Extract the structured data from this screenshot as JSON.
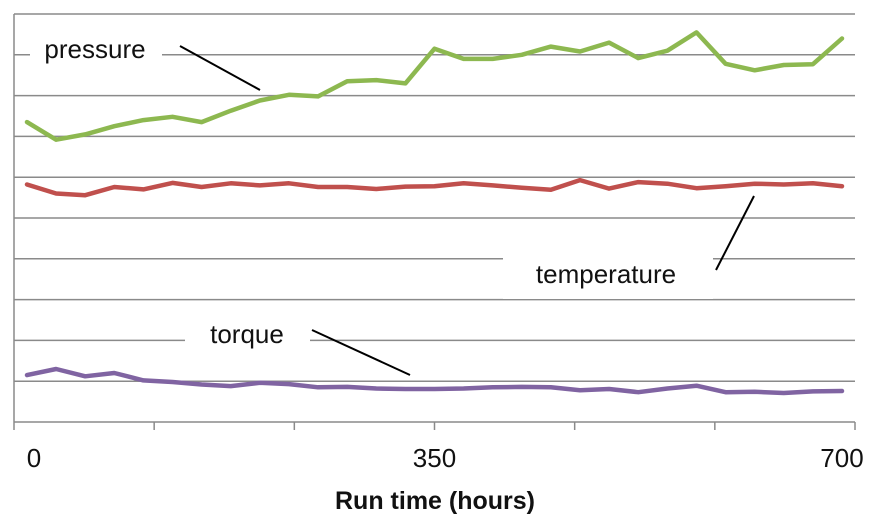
{
  "chart_data": {
    "type": "line",
    "title": "",
    "xlabel": "Run time (hours)",
    "ylabel": "",
    "x_ticks": [
      {
        "value": 0,
        "label": "0"
      },
      {
        "value": 350,
        "label": "350"
      },
      {
        "value": 700,
        "label": "700"
      }
    ],
    "xlim": [
      -10,
      710
    ],
    "ylim": [
      0,
      10
    ],
    "grid": true,
    "x": [
      0,
      25,
      50,
      75,
      100,
      125,
      150,
      175,
      200,
      225,
      250,
      275,
      300,
      325,
      350,
      375,
      400,
      425,
      450,
      475,
      500,
      525,
      550,
      575,
      600,
      625,
      650,
      675,
      700
    ],
    "series": [
      {
        "name": "pressure",
        "color": "#8DB850",
        "values": [
          7.35,
          6.92,
          7.05,
          7.25,
          7.4,
          7.48,
          7.35,
          7.63,
          7.88,
          8.02,
          7.98,
          8.35,
          8.38,
          8.3,
          9.15,
          8.9,
          8.9,
          9.0,
          9.2,
          9.08,
          9.3,
          8.92,
          9.1,
          9.55,
          8.78,
          8.62,
          8.75,
          8.77,
          9.4
        ]
      },
      {
        "name": "temperature",
        "color": "#C0504D",
        "values": [
          5.82,
          5.6,
          5.56,
          5.76,
          5.7,
          5.86,
          5.76,
          5.85,
          5.8,
          5.85,
          5.76,
          5.76,
          5.71,
          5.77,
          5.78,
          5.85,
          5.8,
          5.74,
          5.69,
          5.93,
          5.72,
          5.88,
          5.84,
          5.73,
          5.78,
          5.84,
          5.82,
          5.85,
          5.78
        ]
      },
      {
        "name": "torque",
        "color": "#8064A2",
        "values": [
          1.15,
          1.3,
          1.12,
          1.2,
          1.02,
          0.98,
          0.92,
          0.88,
          0.96,
          0.93,
          0.85,
          0.86,
          0.82,
          0.81,
          0.81,
          0.82,
          0.85,
          0.86,
          0.85,
          0.78,
          0.81,
          0.73,
          0.82,
          0.89,
          0.73,
          0.74,
          0.71,
          0.75,
          0.76
        ]
      }
    ]
  }
}
